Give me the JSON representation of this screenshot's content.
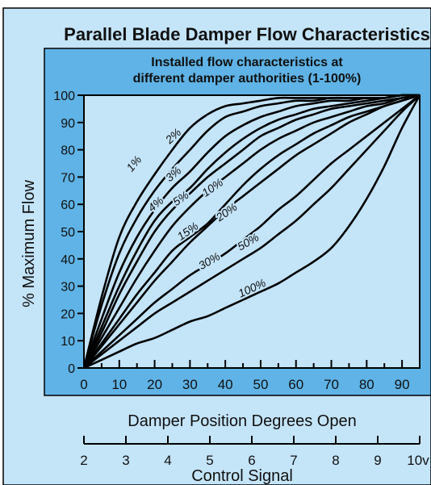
{
  "chart_data": {
    "type": "line",
    "title": "Parallel Blade Damper Flow Characteristics",
    "subtitle_lines": [
      "Installed flow characteristics at",
      "different damper authorities (1-100%)"
    ],
    "xlabel": "Damper Position Degrees Open",
    "ylabel": "% Maximum Flow",
    "xlim": [
      0,
      95
    ],
    "ylim": [
      0,
      100
    ],
    "x_ticks": [
      "0",
      "10",
      "20",
      "30",
      "40",
      "50",
      "60",
      "70",
      "80",
      "90"
    ],
    "y_ticks": [
      "0",
      "10",
      "20",
      "30",
      "40",
      "50",
      "60",
      "70",
      "80",
      "90",
      "100"
    ],
    "secondary_axis": {
      "label": "Control Signal",
      "ticks": [
        "2",
        "3",
        "4",
        "5",
        "6",
        "7",
        "8",
        "9",
        "10v"
      ]
    },
    "grid": false,
    "series": [
      {
        "name": "1%",
        "x": [
          0,
          5,
          10,
          15,
          20,
          25,
          30,
          35,
          40,
          45,
          50,
          55,
          60,
          65,
          70,
          75,
          80,
          85,
          90,
          95
        ],
        "y": [
          0,
          26,
          48,
          61,
          71,
          80,
          88,
          93,
          96,
          97,
          98,
          99,
          99,
          99,
          99,
          99,
          99,
          99,
          100,
          100
        ]
      },
      {
        "name": "2%",
        "x": [
          0,
          5,
          10,
          15,
          20,
          25,
          30,
          35,
          40,
          45,
          50,
          55,
          60,
          65,
          70,
          75,
          80,
          85,
          90,
          95
        ],
        "y": [
          0,
          23,
          42,
          55,
          65,
          73,
          80,
          87,
          92,
          94,
          96,
          97,
          98,
          98,
          99,
          99,
          99,
          99,
          100,
          100
        ]
      },
      {
        "name": "3%",
        "x": [
          0,
          5,
          10,
          15,
          20,
          25,
          30,
          35,
          40,
          45,
          50,
          55,
          60,
          65,
          70,
          75,
          80,
          85,
          90,
          95
        ],
        "y": [
          0,
          18,
          35,
          48,
          58,
          66,
          72,
          79,
          85,
          89,
          92,
          94,
          96,
          97,
          98,
          98,
          99,
          99,
          100,
          100
        ]
      },
      {
        "name": "4%",
        "x": [
          0,
          5,
          10,
          15,
          20,
          25,
          30,
          35,
          40,
          45,
          50,
          55,
          60,
          65,
          70,
          75,
          80,
          85,
          90,
          95
        ],
        "y": [
          0,
          15,
          30,
          43,
          54,
          61,
          66,
          73,
          79,
          84,
          88,
          91,
          93,
          95,
          96,
          97,
          98,
          99,
          100,
          100
        ]
      },
      {
        "name": "5%",
        "x": [
          0,
          5,
          10,
          15,
          20,
          25,
          30,
          35,
          40,
          45,
          50,
          55,
          60,
          65,
          70,
          75,
          80,
          85,
          90,
          95
        ],
        "y": [
          0,
          13,
          27,
          39,
          50,
          58,
          64,
          70,
          75,
          80,
          85,
          88,
          91,
          93,
          95,
          96,
          97,
          98,
          99,
          100
        ]
      },
      {
        "name": "10%",
        "x": [
          0,
          5,
          10,
          15,
          20,
          25,
          30,
          35,
          40,
          45,
          50,
          55,
          60,
          65,
          70,
          75,
          80,
          85,
          90,
          95
        ],
        "y": [
          0,
          11,
          22,
          33,
          43,
          52,
          59,
          65,
          70,
          75,
          80,
          84,
          87,
          90,
          92,
          94,
          96,
          97,
          99,
          100
        ]
      },
      {
        "name": "15%",
        "x": [
          0,
          5,
          10,
          15,
          20,
          25,
          30,
          35,
          40,
          45,
          50,
          55,
          60,
          65,
          70,
          75,
          80,
          85,
          90,
          95
        ],
        "y": [
          0,
          9,
          18,
          27,
          35,
          43,
          48,
          53,
          60,
          67,
          73,
          78,
          82,
          86,
          89,
          92,
          94,
          96,
          98,
          100
        ]
      },
      {
        "name": "20%",
        "x": [
          0,
          5,
          10,
          15,
          20,
          25,
          30,
          35,
          40,
          45,
          50,
          55,
          60,
          65,
          70,
          75,
          80,
          85,
          90,
          95
        ],
        "y": [
          0,
          8,
          16,
          24,
          32,
          39,
          46,
          52,
          58,
          63,
          68,
          73,
          78,
          82,
          86,
          90,
          93,
          96,
          98,
          100
        ]
      },
      {
        "name": "30%",
        "x": [
          0,
          5,
          10,
          15,
          20,
          25,
          30,
          35,
          40,
          45,
          50,
          55,
          60,
          65,
          70,
          75,
          80,
          85,
          90,
          95
        ],
        "y": [
          0,
          6,
          12,
          18,
          24,
          29,
          34,
          38,
          42,
          47,
          52,
          58,
          63,
          69,
          75,
          80,
          85,
          90,
          95,
          100
        ]
      },
      {
        "name": "50%",
        "x": [
          0,
          5,
          10,
          15,
          20,
          25,
          30,
          35,
          40,
          45,
          50,
          55,
          60,
          65,
          70,
          75,
          80,
          85,
          90,
          95
        ],
        "y": [
          0,
          5,
          10,
          15,
          20,
          24,
          28,
          32,
          36,
          40,
          44,
          49,
          54,
          60,
          66,
          73,
          80,
          87,
          94,
          100
        ]
      },
      {
        "name": "100%",
        "x": [
          0,
          5,
          10,
          15,
          20,
          25,
          30,
          35,
          40,
          45,
          50,
          55,
          60,
          65,
          70,
          75,
          80,
          85,
          90,
          95
        ],
        "y": [
          0,
          3,
          6,
          9,
          11,
          14,
          17,
          19,
          22,
          25,
          28,
          31,
          35,
          39,
          44,
          52,
          62,
          74,
          88,
          100
        ]
      }
    ],
    "curve_labels": [
      {
        "text": "1%",
        "x": 15,
        "y": 74,
        "angle": -50
      },
      {
        "text": "2%",
        "x": 26,
        "y": 84,
        "angle": -42
      },
      {
        "text": "3%",
        "x": 26,
        "y": 70,
        "angle": -40
      },
      {
        "text": "4%",
        "x": 21,
        "y": 59,
        "angle": -40
      },
      {
        "text": "5%",
        "x": 28,
        "y": 61,
        "angle": -35
      },
      {
        "text": "10%",
        "x": 37,
        "y": 65,
        "angle": -35
      },
      {
        "text": "15%",
        "x": 30,
        "y": 49,
        "angle": -35
      },
      {
        "text": "20%",
        "x": 41,
        "y": 56,
        "angle": -35
      },
      {
        "text": "30%",
        "x": 36,
        "y": 38,
        "angle": -30
      },
      {
        "text": "50%",
        "x": 47,
        "y": 45,
        "angle": -30
      },
      {
        "text": "100%",
        "x": 48,
        "y": 28,
        "angle": -25
      }
    ]
  }
}
